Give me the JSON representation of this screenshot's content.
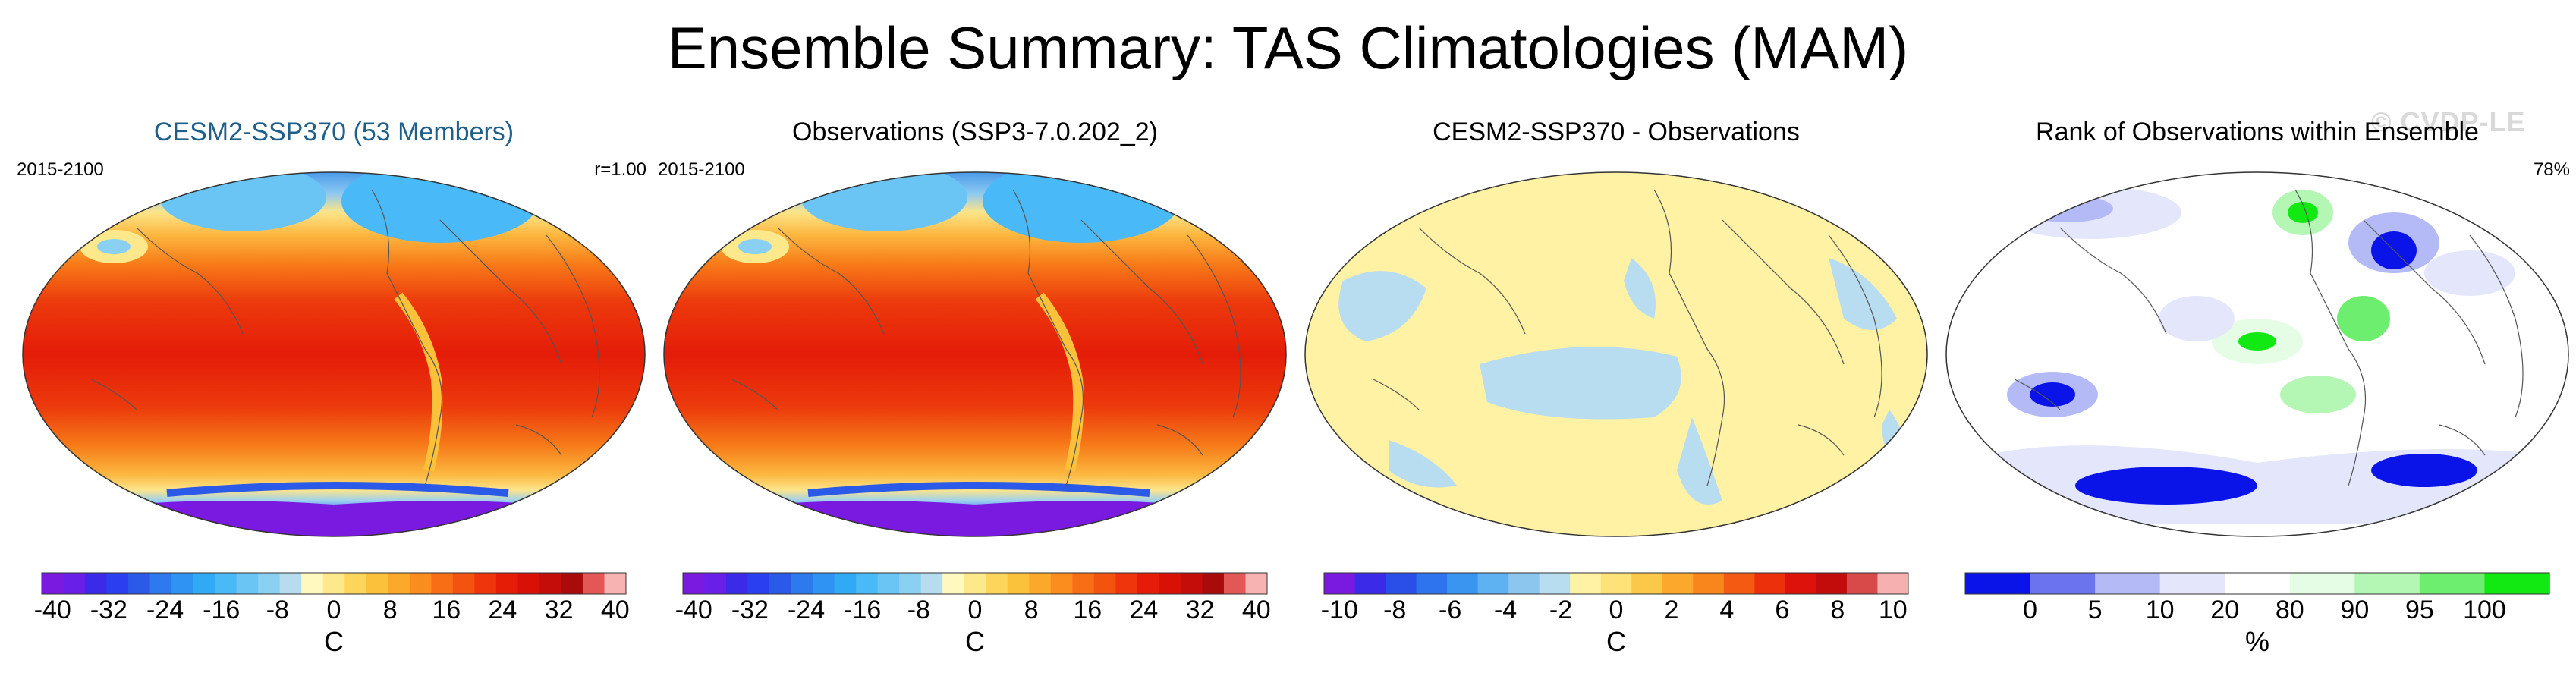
{
  "figure": {
    "title": "Ensemble Summary: TAS Climatologies (MAM)",
    "watermark": "© CVDP-LE"
  },
  "panels": [
    {
      "title": "CESM2-SSP370 (53 Members)",
      "period": "2015-2100",
      "stat": "r=1.00",
      "title_color": "#1f5f8b"
    },
    {
      "title": "Observations (SSP3-7.0.202_2)",
      "period": "2015-2100",
      "stat": ""
    },
    {
      "title": "CESM2-SSP370 - Observations",
      "period": "",
      "stat": ""
    },
    {
      "title": "Rank of Observations within Ensemble",
      "period": "",
      "stat": "78%"
    }
  ],
  "chart_data": [
    {
      "type": "heatmap",
      "title": "CESM2-SSP370 (53 Members)",
      "variable": "TAS",
      "season": "MAM",
      "period": "2015-2100",
      "pattern_correlation": 1.0,
      "colorbar": {
        "unit": "C",
        "tick_labels": [
          "-40",
          "-32",
          "-24",
          "-16",
          "-8",
          "0",
          "8",
          "16",
          "24",
          "32",
          "40"
        ],
        "colors": [
          "#7a1ae0",
          "#6a1fe8",
          "#3b2be8",
          "#2a3ff0",
          "#2b5ae8",
          "#2d7aee",
          "#2e93f2",
          "#30aaf5",
          "#4ab9f7",
          "#6ac5f5",
          "#8ad0f3",
          "#b7dcef",
          "#fff9c0",
          "#fde98c",
          "#fdd55a",
          "#fcc13a",
          "#fca82a",
          "#fb8c1e",
          "#f86e15",
          "#f4520f",
          "#ee350b",
          "#e61c08",
          "#d81006",
          "#c40c08",
          "#a90a0a",
          "#e45757",
          "#f7b2b2"
        ],
        "range": [
          -40,
          40
        ]
      }
    },
    {
      "type": "heatmap",
      "title": "Observations (SSP3-7.0.202_2)",
      "variable": "TAS",
      "season": "MAM",
      "period": "2015-2100",
      "colorbar": {
        "unit": "C",
        "tick_labels": [
          "-40",
          "-32",
          "-24",
          "-16",
          "-8",
          "0",
          "8",
          "16",
          "24",
          "32",
          "40"
        ],
        "range": [
          -40,
          40
        ]
      }
    },
    {
      "type": "heatmap",
      "title": "CESM2-SSP370 - Observations",
      "variable": "TAS difference",
      "colorbar": {
        "unit": "C",
        "tick_labels": [
          "-10",
          "-8",
          "-6",
          "-4",
          "-2",
          "0",
          "2",
          "4",
          "6",
          "8",
          "10"
        ],
        "colors": [
          "#7a1ae0",
          "#3b2be8",
          "#2a4fe8",
          "#2d74ee",
          "#3a95f0",
          "#5fb2f2",
          "#8cc6ee",
          "#b8dcf0",
          "#fff2a5",
          "#fde27a",
          "#fcc84a",
          "#fba82c",
          "#f9861d",
          "#f45a12",
          "#ec300b",
          "#dd120a",
          "#c20c0c",
          "#d84a4a",
          "#f6b0b0"
        ],
        "range": [
          -10,
          10
        ]
      }
    },
    {
      "type": "heatmap",
      "title": "Rank of Observations within Ensemble",
      "stat": "78%",
      "colorbar": {
        "unit": "%",
        "tick_labels": [
          "0",
          "5",
          "10",
          "20",
          "80",
          "90",
          "95",
          "100"
        ],
        "colors": [
          "#0a14e8",
          "#6b74ee",
          "#b4baf6",
          "#e4e6fb",
          "#ffffff",
          "#e5fce5",
          "#b4f6b4",
          "#6eee6e",
          "#12e812"
        ]
      }
    }
  ]
}
